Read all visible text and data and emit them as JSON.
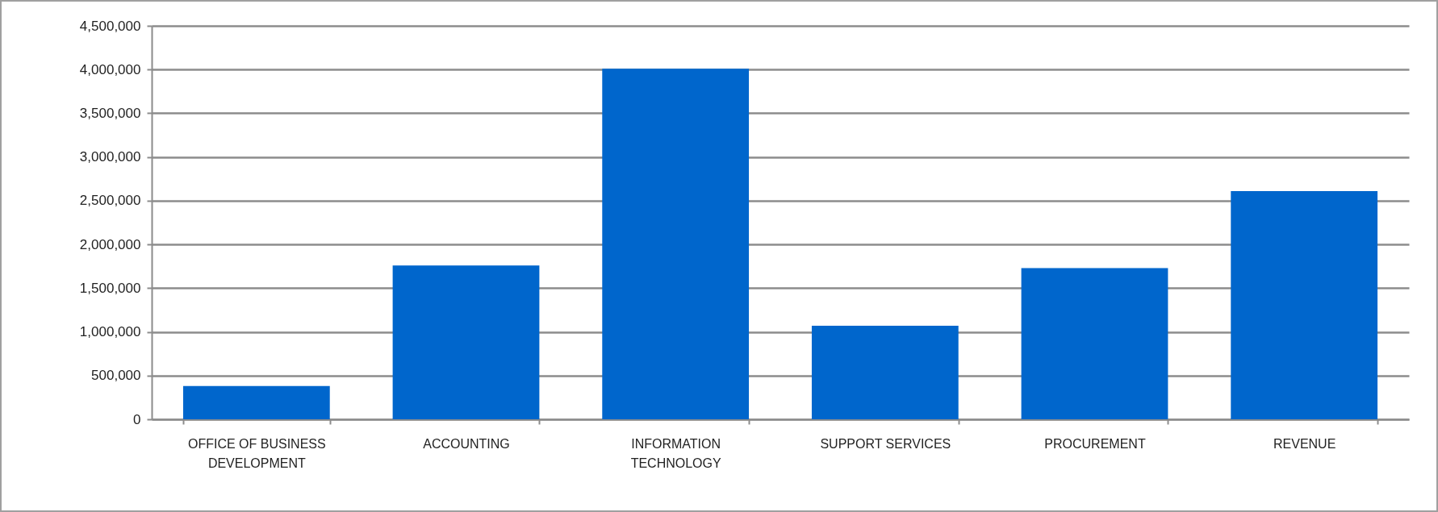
{
  "chart_data": {
    "type": "bar",
    "categories": [
      "OFFICE OF BUSINESS DEVELOPMENT",
      "ACCOUNTING",
      "INFORMATION TECHNOLOGY",
      "SUPPORT SERVICES",
      "PROCUREMENT",
      "REVENUE"
    ],
    "values": [
      380000,
      1760000,
      4010000,
      1070000,
      1730000,
      2610000
    ],
    "color": "#0066cc",
    "ylim": [
      0,
      4500000
    ],
    "yticks": [
      0,
      {
        "value": 500000,
        "label": "500,000"
      },
      {
        "value": 1000000,
        "label": "1,000,000"
      },
      {
        "value": 1500000,
        "label": "1,500,000"
      },
      {
        "value": 2000000,
        "label": "2,000,000"
      },
      {
        "value": 2500000,
        "label": "2,500,000"
      },
      {
        "value": 3000000,
        "label": "3,000,000"
      },
      {
        "value": 3500000,
        "label": "3,500,000"
      },
      {
        "value": 4000000,
        "label": "4,000,000"
      },
      {
        "value": 4500000,
        "label": "4,500,000"
      }
    ],
    "grid": "y"
  }
}
